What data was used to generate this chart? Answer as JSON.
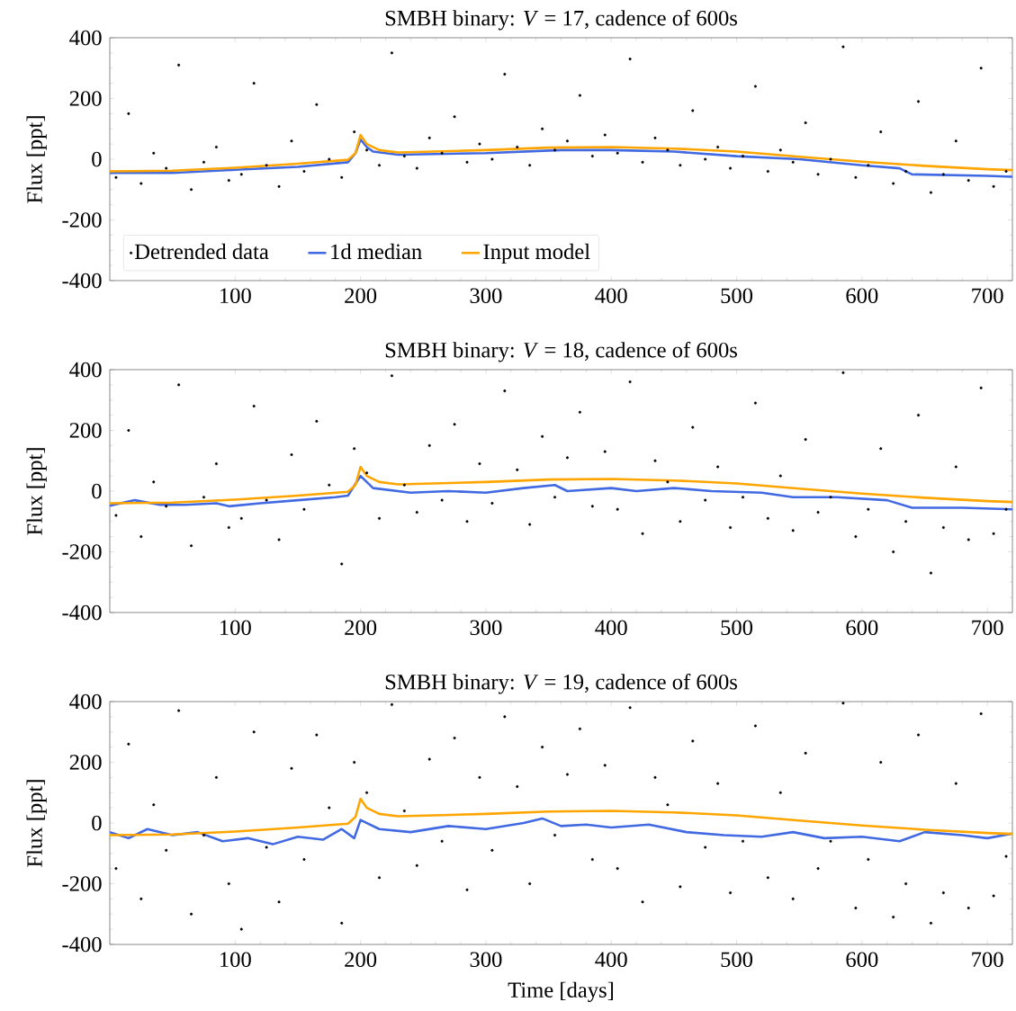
{
  "chart_data": [
    {
      "type": "scatter",
      "title": "SMBH binary: *V* = 17, cadence of 600s",
      "ylabel": "Flux [ppt]",
      "xlim": [
        0,
        720
      ],
      "xticks": [
        100,
        200,
        300,
        400,
        500,
        600,
        700
      ],
      "ylim": [
        -400,
        400
      ],
      "yticks": [
        -400,
        -200,
        0,
        200,
        400
      ],
      "legend": "bottom left",
      "series": [
        {
          "name": "Detrended data",
          "marker": "circle",
          "color": "#000000",
          "x": [
            5,
            15,
            25,
            35,
            45,
            55,
            65,
            75,
            85,
            95,
            105,
            115,
            125,
            135,
            145,
            155,
            165,
            175,
            185,
            195,
            205,
            215,
            225,
            235,
            245,
            255,
            265,
            275,
            285,
            295,
            305,
            315,
            325,
            335,
            345,
            355,
            365,
            375,
            385,
            395,
            405,
            415,
            425,
            435,
            445,
            455,
            465,
            475,
            485,
            495,
            505,
            515,
            525,
            535,
            545,
            555,
            565,
            575,
            585,
            595,
            605,
            615,
            625,
            635,
            645,
            655,
            665,
            675,
            685,
            695,
            705,
            715
          ],
          "values": [
            -60,
            150,
            -80,
            20,
            -30,
            310,
            -100,
            -10,
            40,
            -70,
            -50,
            250,
            -20,
            -90,
            60,
            -40,
            180,
            0,
            -60,
            90,
            30,
            -20,
            350,
            10,
            -30,
            70,
            20,
            140,
            -10,
            50,
            0,
            280,
            40,
            -20,
            100,
            30,
            60,
            210,
            10,
            80,
            20,
            330,
            -10,
            70,
            30,
            -20,
            160,
            0,
            40,
            -30,
            10,
            240,
            -40,
            30,
            -10,
            120,
            -50,
            0,
            370,
            -60,
            -20,
            90,
            -80,
            -40,
            190,
            -110,
            -50,
            60,
            -70,
            300,
            -90,
            -40
          ]
        },
        {
          "name": "1d median",
          "type": "line",
          "marker": "none",
          "color": "#4169e1",
          "x": [
            0,
            50,
            100,
            150,
            190,
            196,
            200,
            205,
            210,
            230,
            300,
            360,
            400,
            450,
            500,
            550,
            600,
            630,
            640,
            700,
            720
          ],
          "values": [
            -45,
            -45,
            -35,
            -25,
            -10,
            20,
            65,
            40,
            25,
            15,
            20,
            30,
            30,
            25,
            10,
            0,
            -20,
            -30,
            -50,
            -55,
            -58
          ]
        },
        {
          "name": "Input model",
          "type": "line",
          "marker": "none",
          "color": "#ffa500",
          "x": [
            0,
            50,
            100,
            150,
            190,
            196,
            200,
            205,
            215,
            230,
            300,
            350,
            400,
            450,
            500,
            550,
            600,
            650,
            700,
            720
          ],
          "values": [
            -40,
            -38,
            -28,
            -15,
            -2,
            20,
            80,
            50,
            30,
            22,
            30,
            38,
            40,
            35,
            25,
            8,
            -8,
            -22,
            -33,
            -36
          ]
        }
      ]
    },
    {
      "type": "scatter",
      "title": "SMBH binary: *V* = 18, cadence of 600s",
      "ylabel": "Flux [ppt]",
      "xlim": [
        0,
        720
      ],
      "xticks": [
        100,
        200,
        300,
        400,
        500,
        600,
        700
      ],
      "ylim": [
        -400,
        400
      ],
      "yticks": [
        -400,
        -200,
        0,
        200,
        400
      ],
      "series": [
        {
          "marker": "circle",
          "color": "#000000",
          "x": [
            5,
            15,
            25,
            35,
            45,
            55,
            65,
            75,
            85,
            95,
            105,
            115,
            125,
            135,
            145,
            155,
            165,
            175,
            185,
            195,
            205,
            215,
            225,
            235,
            245,
            255,
            265,
            275,
            285,
            295,
            305,
            315,
            325,
            335,
            345,
            355,
            365,
            375,
            385,
            395,
            405,
            415,
            425,
            435,
            445,
            455,
            465,
            475,
            485,
            495,
            505,
            515,
            525,
            535,
            545,
            555,
            565,
            575,
            585,
            595,
            605,
            615,
            625,
            635,
            645,
            655,
            665,
            675,
            685,
            695,
            705,
            715
          ],
          "values": [
            -80,
            200,
            -150,
            30,
            -50,
            350,
            -180,
            -20,
            90,
            -120,
            -90,
            280,
            -30,
            -160,
            120,
            -60,
            230,
            20,
            -240,
            140,
            60,
            -90,
            380,
            20,
            -70,
            150,
            -30,
            220,
            -100,
            90,
            -40,
            330,
            70,
            -110,
            180,
            -20,
            110,
            260,
            -50,
            130,
            -60,
            360,
            -140,
            100,
            30,
            -100,
            210,
            -30,
            80,
            -120,
            -20,
            290,
            -90,
            50,
            -130,
            170,
            -70,
            -20,
            390,
            -150,
            -60,
            140,
            -200,
            -100,
            250,
            -270,
            -120,
            80,
            -160,
            340,
            -140,
            -60
          ]
        },
        {
          "type": "line",
          "marker": "none",
          "color": "#4169e1",
          "x": [
            0,
            20,
            40,
            60,
            85,
            95,
            120,
            150,
            180,
            190,
            200,
            210,
            240,
            270,
            300,
            330,
            355,
            365,
            400,
            420,
            450,
            480,
            520,
            545,
            580,
            620,
            640,
            680,
            720
          ],
          "values": [
            -48,
            -30,
            -45,
            -45,
            -40,
            -50,
            -40,
            -30,
            -20,
            -15,
            50,
            10,
            -5,
            0,
            -5,
            10,
            20,
            0,
            10,
            0,
            10,
            0,
            -5,
            -20,
            -20,
            -30,
            -55,
            -55,
            -60
          ]
        },
        {
          "type": "line",
          "marker": "none",
          "color": "#ffa500",
          "x": [
            0,
            50,
            100,
            150,
            190,
            196,
            200,
            205,
            215,
            230,
            300,
            350,
            400,
            450,
            500,
            550,
            600,
            650,
            700,
            720
          ],
          "values": [
            -40,
            -38,
            -28,
            -15,
            -2,
            20,
            80,
            50,
            30,
            22,
            30,
            38,
            40,
            35,
            25,
            8,
            -8,
            -22,
            -33,
            -36
          ]
        }
      ]
    },
    {
      "type": "scatter",
      "title": "SMBH binary: *V* = 19, cadence of 600s",
      "xlabel": "Time [days]",
      "ylabel": "Flux [ppt]",
      "xlim": [
        0,
        720
      ],
      "xticks": [
        100,
        200,
        300,
        400,
        500,
        600,
        700
      ],
      "ylim": [
        -400,
        400
      ],
      "yticks": [
        -400,
        -200,
        0,
        200,
        400
      ],
      "series": [
        {
          "marker": "circle",
          "color": "#000000",
          "x": [
            5,
            15,
            25,
            35,
            45,
            55,
            65,
            75,
            85,
            95,
            105,
            115,
            125,
            135,
            145,
            155,
            165,
            175,
            185,
            195,
            205,
            215,
            225,
            235,
            245,
            255,
            265,
            275,
            285,
            295,
            305,
            315,
            325,
            335,
            345,
            355,
            365,
            375,
            385,
            395,
            405,
            415,
            425,
            435,
            445,
            455,
            465,
            475,
            485,
            495,
            505,
            515,
            525,
            535,
            545,
            555,
            565,
            575,
            585,
            595,
            605,
            615,
            625,
            635,
            645,
            655,
            665,
            675,
            685,
            695,
            705,
            715
          ],
          "values": [
            -150,
            260,
            -250,
            60,
            -90,
            370,
            -300,
            -40,
            150,
            -200,
            -350,
            300,
            -80,
            -260,
            180,
            -120,
            290,
            50,
            -330,
            200,
            100,
            -180,
            390,
            40,
            -140,
            210,
            -60,
            280,
            -220,
            150,
            -90,
            350,
            120,
            -200,
            250,
            -40,
            160,
            310,
            -120,
            190,
            -150,
            380,
            -260,
            150,
            60,
            -210,
            270,
            -80,
            130,
            -230,
            -60,
            320,
            -180,
            100,
            -250,
            230,
            -150,
            -60,
            395,
            -280,
            -120,
            200,
            -310,
            -200,
            290,
            -330,
            -230,
            130,
            -280,
            360,
            -240,
            -110
          ]
        },
        {
          "type": "line",
          "marker": "none",
          "color": "#4169e1",
          "x": [
            0,
            15,
            30,
            50,
            70,
            90,
            110,
            130,
            150,
            170,
            185,
            195,
            200,
            215,
            240,
            270,
            300,
            330,
            345,
            360,
            380,
            400,
            430,
            460,
            490,
            520,
            545,
            570,
            600,
            630,
            650,
            680,
            700,
            720
          ],
          "values": [
            -30,
            -50,
            -20,
            -40,
            -30,
            -60,
            -50,
            -70,
            -45,
            -55,
            -20,
            -50,
            10,
            -20,
            -30,
            -10,
            -20,
            0,
            15,
            -10,
            -5,
            -15,
            -5,
            -30,
            -40,
            -45,
            -30,
            -50,
            -45,
            -60,
            -30,
            -40,
            -50,
            -35
          ]
        },
        {
          "type": "line",
          "marker": "none",
          "color": "#ffa500",
          "x": [
            0,
            50,
            100,
            150,
            190,
            196,
            200,
            205,
            215,
            230,
            300,
            350,
            400,
            450,
            500,
            550,
            600,
            650,
            700,
            720
          ],
          "values": [
            -40,
            -38,
            -28,
            -15,
            -2,
            20,
            80,
            50,
            30,
            22,
            30,
            38,
            40,
            35,
            25,
            8,
            -8,
            -22,
            -33,
            -36
          ]
        }
      ]
    }
  ]
}
